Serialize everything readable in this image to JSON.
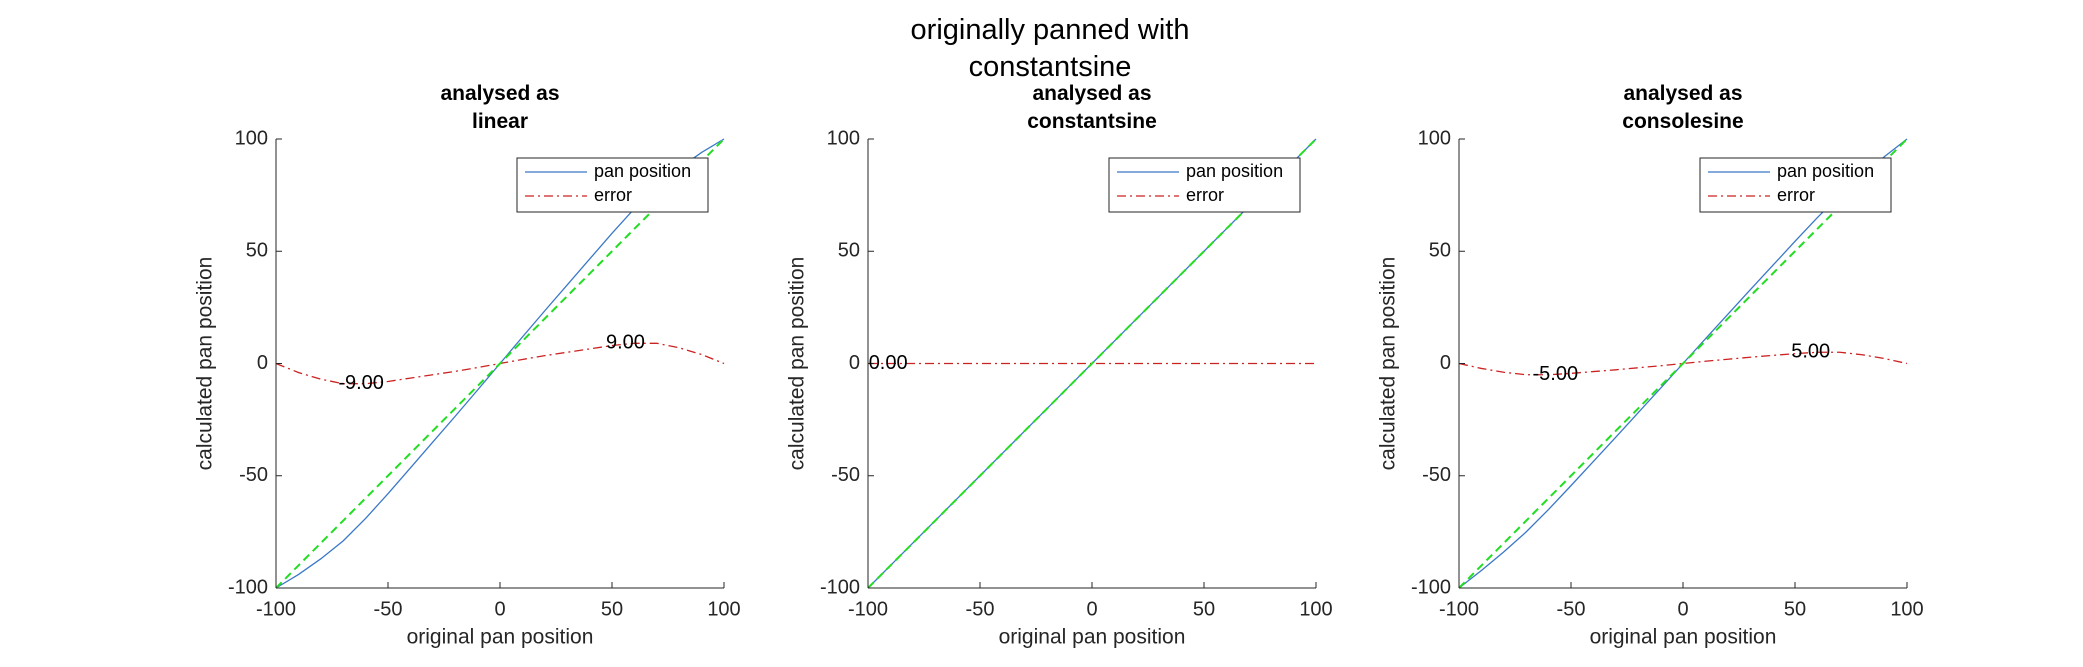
{
  "title": "originally panned with\nconstantsine",
  "chart_data": [
    {
      "type": "line",
      "title": "analysed as\nlinear",
      "xlabel": "original pan position",
      "ylabel": "calculated pan position",
      "x": [
        -100,
        -90,
        -80,
        -70,
        -60,
        -50,
        -40,
        -30,
        -20,
        -10,
        0,
        10,
        20,
        30,
        40,
        50,
        60,
        70,
        80,
        90,
        100
      ],
      "series": [
        {
          "name": "pan position",
          "color": "#3a78c8",
          "style": "solid",
          "values": [
            -100,
            -94,
            -87,
            -79,
            -69,
            -58,
            -46.5,
            -35,
            -23.5,
            -11.8,
            0,
            11.8,
            23.5,
            35,
            46.5,
            58,
            69,
            79,
            87,
            94,
            100
          ]
        },
        {
          "name": "error",
          "color": "#cc2222",
          "style": "dashdot",
          "values": [
            0,
            -4,
            -7,
            -9,
            -9,
            -8,
            -6.5,
            -5,
            -3.5,
            -1.8,
            0,
            1.8,
            3.5,
            5,
            6.5,
            8,
            9,
            9,
            7,
            4,
            0
          ]
        },
        {
          "color": "#22dd22",
          "style": "dashed",
          "values": [
            -100,
            -90,
            -80,
            -70,
            -60,
            -50,
            -40,
            -30,
            -20,
            -10,
            0,
            10,
            20,
            30,
            40,
            50,
            60,
            70,
            80,
            90,
            100
          ]
        }
      ],
      "annotations": [
        {
          "x": -62,
          "y": -9,
          "label": "-9.00"
        },
        {
          "x": 56,
          "y": 9,
          "label": "9.00"
        }
      ],
      "xlim": [
        -100,
        100
      ],
      "xticks": [
        -100,
        -50,
        0,
        50,
        100
      ],
      "ylim": [
        -100,
        100
      ],
      "yticks": [
        -100,
        -50,
        0,
        50,
        100
      ],
      "legend": "upper right"
    },
    {
      "type": "line",
      "title": "analysed as\nconstantsine",
      "xlabel": "original pan position",
      "ylabel": "calculated pan position",
      "x": [
        -100,
        -90,
        -80,
        -70,
        -60,
        -50,
        -40,
        -30,
        -20,
        -10,
        0,
        10,
        20,
        30,
        40,
        50,
        60,
        70,
        80,
        90,
        100
      ],
      "series": [
        {
          "name": "pan position",
          "color": "#3a78c8",
          "style": "solid",
          "values": [
            -100,
            -90,
            -80,
            -70,
            -60,
            -50,
            -40,
            -30,
            -20,
            -10,
            0,
            10,
            20,
            30,
            40,
            50,
            60,
            70,
            80,
            90,
            100
          ]
        },
        {
          "name": "error",
          "color": "#cc2222",
          "style": "dashdot",
          "values": [
            0,
            0,
            0,
            0,
            0,
            0,
            0,
            0,
            0,
            0,
            0,
            0,
            0,
            0,
            0,
            0,
            0,
            0,
            0,
            0,
            0
          ]
        },
        {
          "color": "#22dd22",
          "style": "dashed",
          "values": [
            -100,
            -90,
            -80,
            -70,
            -60,
            -50,
            -40,
            -30,
            -20,
            -10,
            0,
            10,
            20,
            30,
            40,
            50,
            60,
            70,
            80,
            90,
            100
          ]
        }
      ],
      "annotations": [
        {
          "x": -91,
          "y": 0,
          "label": "0.00"
        }
      ],
      "xlim": [
        -100,
        100
      ],
      "xticks": [
        -100,
        -50,
        0,
        50,
        100
      ],
      "ylim": [
        -100,
        100
      ],
      "yticks": [
        -100,
        -50,
        0,
        50,
        100
      ],
      "legend": "upper right"
    },
    {
      "type": "line",
      "title": "analysed as\nconsolesine",
      "xlabel": "original pan position",
      "ylabel": "calculated pan position",
      "x": [
        -100,
        -90,
        -80,
        -70,
        -60,
        -50,
        -40,
        -30,
        -20,
        -10,
        0,
        10,
        20,
        30,
        40,
        50,
        60,
        70,
        80,
        90,
        100
      ],
      "series": [
        {
          "name": "pan position",
          "color": "#3a78c8",
          "style": "solid",
          "values": [
            -100,
            -92.2,
            -83.9,
            -75,
            -65,
            -54.4,
            -43.6,
            -32.8,
            -21.9,
            -11,
            0,
            11,
            21.9,
            32.8,
            43.6,
            54.4,
            65,
            75,
            83.9,
            92.2,
            100
          ]
        },
        {
          "name": "error",
          "color": "#cc2222",
          "style": "dashdot",
          "values": [
            0,
            -2.2,
            -3.9,
            -5,
            -5,
            -4.4,
            -3.6,
            -2.8,
            -1.9,
            -1,
            0,
            1,
            1.9,
            2.8,
            3.6,
            4.4,
            5,
            5,
            3.9,
            2.2,
            0
          ]
        },
        {
          "color": "#22dd22",
          "style": "dashed",
          "values": [
            -100,
            -90,
            -80,
            -70,
            -60,
            -50,
            -40,
            -30,
            -20,
            -10,
            0,
            10,
            20,
            30,
            40,
            50,
            60,
            70,
            80,
            90,
            100
          ]
        }
      ],
      "annotations": [
        {
          "x": -57,
          "y": -5,
          "label": "-5.00"
        },
        {
          "x": 57,
          "y": 5,
          "label": "5.00"
        }
      ],
      "xlim": [
        -100,
        100
      ],
      "xticks": [
        -100,
        -50,
        0,
        50,
        100
      ],
      "ylim": [
        -100,
        100
      ],
      "yticks": [
        -100,
        -50,
        0,
        50,
        100
      ],
      "legend": "upper right"
    }
  ]
}
